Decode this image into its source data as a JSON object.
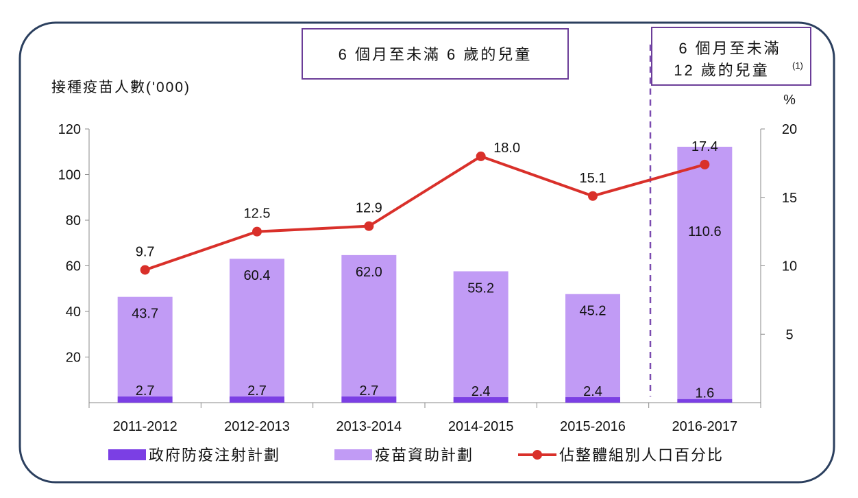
{
  "chart_data": {
    "type": "bar",
    "categories": [
      "2011-2012",
      "2012-2013",
      "2013-2014",
      "2014-2015",
      "2015-2016",
      "2016-2017"
    ],
    "series": [
      {
        "name": "政府防疫注射計劃",
        "kind": "stacked-bar",
        "color": "#7b3fe4",
        "values": [
          2.7,
          2.7,
          2.7,
          2.4,
          2.4,
          1.6
        ]
      },
      {
        "name": "疫苗資助計劃",
        "kind": "stacked-bar",
        "color": "#c19bf5",
        "values": [
          43.7,
          60.4,
          62.0,
          55.2,
          45.2,
          110.6
        ]
      },
      {
        "name": "佔整體組別人口百分比",
        "kind": "line",
        "axis": "right",
        "color": "#d9302a",
        "values": [
          9.7,
          12.5,
          12.9,
          18.0,
          15.1,
          17.4
        ]
      }
    ],
    "ylabel": "接種疫苗人數('000)",
    "ylim": [
      0,
      120
    ],
    "yticks": [
      "20",
      "40",
      "60",
      "80",
      "100",
      "120"
    ],
    "y2label": "%",
    "y2lim": [
      0,
      20
    ],
    "y2ticks": [
      "5",
      "10",
      "15",
      "20"
    ],
    "annotations": {
      "group1": "6 個月至未滿 6 歲的兒童",
      "group2_line1": "6 個月至未滿",
      "group2_line2": "12 歲的兒童",
      "group2_note": "(1)"
    },
    "legend_position": "bottom"
  }
}
